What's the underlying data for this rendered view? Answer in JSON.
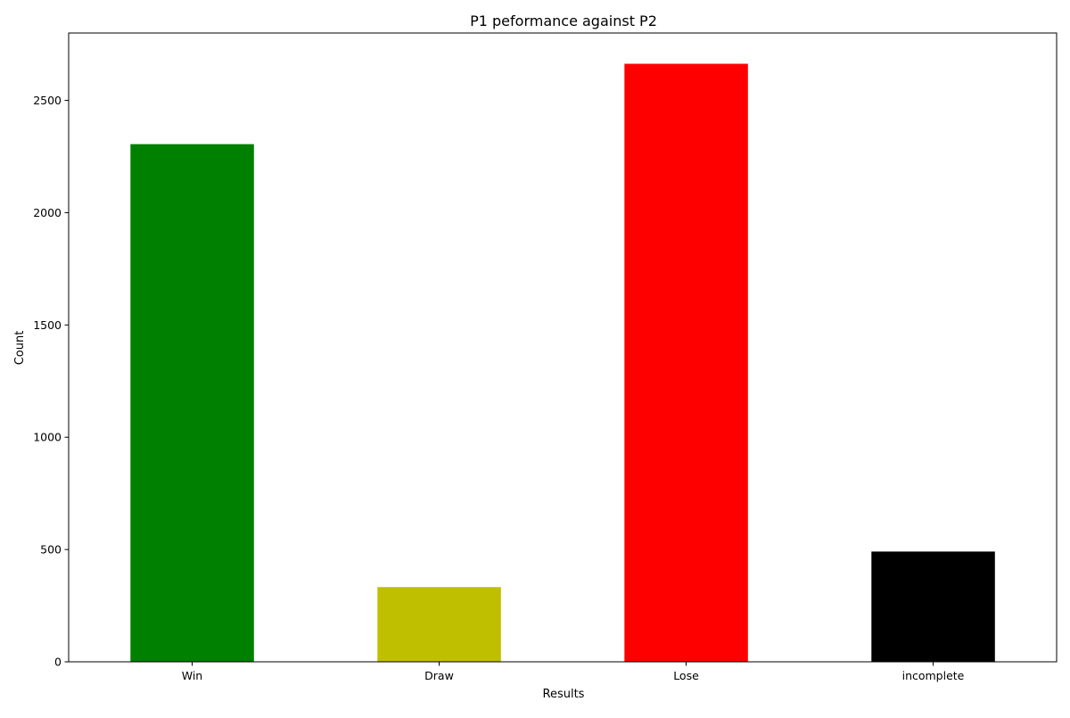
{
  "chart_data": {
    "type": "bar",
    "title": "P1 peformance against P2",
    "xlabel": "Results",
    "ylabel": "Count",
    "categories": [
      "Win",
      "Draw",
      "Lose",
      "incomplete"
    ],
    "values": [
      2305,
      333,
      2663,
      491
    ],
    "colors": [
      "#008000",
      "#bfbf00",
      "#ff0000",
      "#000000"
    ],
    "ylim": [
      0,
      2800
    ],
    "yticks": [
      0,
      500,
      1000,
      1500,
      2000,
      2500
    ],
    "grid": false,
    "legend": "none"
  }
}
